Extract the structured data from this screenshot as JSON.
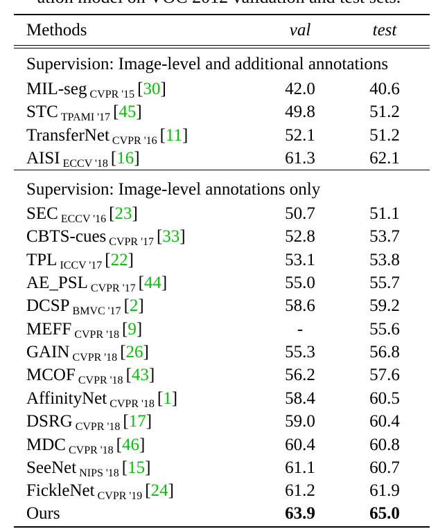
{
  "caption": "ation model on VOC 2012 validation and test sets.",
  "header": {
    "methods": "Methods",
    "val": "val",
    "test": "test"
  },
  "sections": [
    {
      "title": "Supervision: Image-level and additional annotations",
      "rows": [
        {
          "name": "MIL-seg",
          "venue": "CVPR '15",
          "cite": "30",
          "val": "42.0",
          "test": "40.6"
        },
        {
          "name": "STC",
          "venue": "TPAMI '17",
          "cite": "45",
          "val": "49.8",
          "test": "51.2"
        },
        {
          "name": "TransferNet",
          "venue": "CVPR '16",
          "cite": "11",
          "val": "52.1",
          "test": "51.2"
        },
        {
          "name": "AISI",
          "venue": "ECCV '18",
          "cite": "16",
          "val": "61.3",
          "test": "62.1"
        }
      ]
    },
    {
      "title": "Supervision: Image-level annotations only",
      "rows": [
        {
          "name": "SEC",
          "venue": "ECCV '16",
          "cite": "23",
          "val": "50.7",
          "test": "51.1"
        },
        {
          "name": "CBTS-cues",
          "venue": "CVPR '17",
          "cite": "33",
          "val": "52.8",
          "test": "53.7"
        },
        {
          "name": "TPL",
          "venue": "ICCV '17",
          "cite": "22",
          "val": "53.1",
          "test": "53.8"
        },
        {
          "name": "AE_PSL",
          "venue": "CVPR '17",
          "cite": "44",
          "val": "55.0",
          "test": "55.7"
        },
        {
          "name": "DCSP",
          "venue": "BMVC '17",
          "cite": "2",
          "val": "58.6",
          "test": "59.2"
        },
        {
          "name": "MEFF",
          "venue": "CVPR '18",
          "cite": "9",
          "val": "-",
          "test": "55.6"
        },
        {
          "name": "GAIN",
          "venue": "CVPR '18",
          "cite": "26",
          "val": "55.3",
          "test": "56.8"
        },
        {
          "name": "MCOF",
          "venue": "CVPR '18",
          "cite": "43",
          "val": "56.2",
          "test": "57.6"
        },
        {
          "name": "AffinityNet",
          "venue": "CVPR '18",
          "cite": "1",
          "val": "58.4",
          "test": "60.5"
        },
        {
          "name": "DSRG",
          "venue": "CVPR '18",
          "cite": "17",
          "val": "59.0",
          "test": "60.4"
        },
        {
          "name": "MDC",
          "venue": "CVPR '18",
          "cite": "46",
          "val": "60.4",
          "test": "60.8"
        },
        {
          "name": "SeeNet",
          "venue": "NIPS '18",
          "cite": "15",
          "val": "61.1",
          "test": "60.7"
        },
        {
          "name": "FickleNet",
          "venue": "CVPR '19",
          "cite": "24",
          "val": "61.2",
          "test": "61.9"
        }
      ]
    }
  ],
  "ours": {
    "name": "Ours",
    "val": "63.9",
    "test": "65.0"
  },
  "colors": {
    "citation": "#00c400",
    "text": "#000000"
  }
}
